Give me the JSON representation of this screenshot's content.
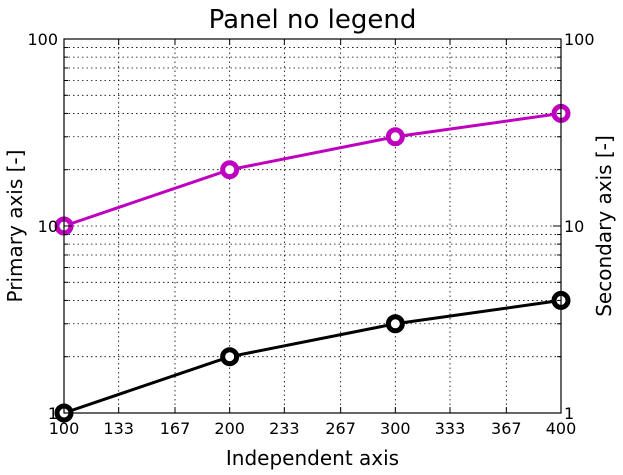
{
  "chart_data": {
    "type": "line",
    "title": "Panel no legend",
    "xlabel": "Independent axis",
    "ylabel": "Primary axis [-]",
    "ylabel_right": "Secondary axis [-]",
    "xlim": [
      100,
      400
    ],
    "ylim": [
      1,
      100
    ],
    "yscale": "log",
    "grid": true,
    "x_ticks": [
      100,
      133,
      167,
      200,
      233,
      267,
      300,
      333,
      367,
      400
    ],
    "x_tick_labels": [
      "100",
      "133",
      "167",
      "200",
      "233",
      "267",
      "300",
      "333",
      "367",
      "400"
    ],
    "y_ticks": [
      1,
      10,
      100
    ],
    "y_tick_labels": [
      "1",
      "10",
      "100"
    ],
    "y_tick_labels_right": [
      "1",
      "10",
      "100"
    ],
    "x": [
      100,
      200,
      300,
      400
    ],
    "series": [
      {
        "values": [
          1,
          2,
          3,
          4
        ],
        "color": "#000000",
        "marker": "circle"
      },
      {
        "values": [
          10,
          20,
          30,
          40
        ],
        "color": "#bf00bf",
        "marker": "circle"
      }
    ]
  }
}
